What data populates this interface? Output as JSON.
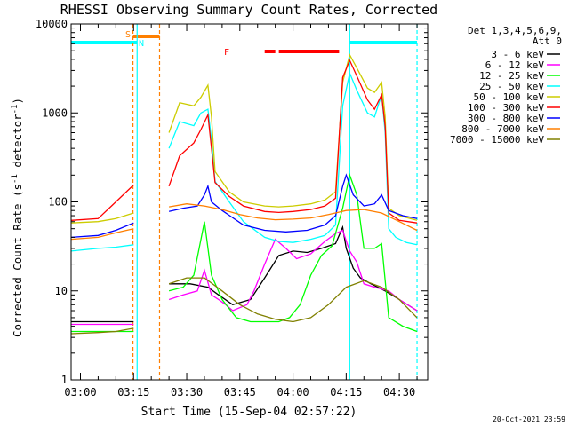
{
  "chart_data": {
    "type": "line",
    "title": "RHESSI Observing Summary Count Rates, Corrected",
    "xlabel": "Start Time (15-Sep-04 02:57:22)",
    "ylabel_main": "Corrected Count Rate (s",
    "ylabel_sup1": "-1",
    "ylabel_mid": " detector",
    "ylabel_sup2": "-1",
    "ylabel_end": ")",
    "y_scale": "log",
    "ylim": [
      1,
      10000
    ],
    "xlim": [
      "02:57:22",
      "04:38:00"
    ],
    "x_ticks": [
      "03:00",
      "03:15",
      "03:30",
      "03:45",
      "04:00",
      "04:15",
      "04:30"
    ],
    "y_ticks": [
      "1",
      "10",
      "100",
      "1000",
      "10000"
    ],
    "grid": false,
    "legend_placement": "right",
    "legend_header": [
      "Det 1,3,4,5,6,9,",
      "Att 0"
    ],
    "timestamp": "20-Oct-2021 23:59",
    "flag_labels": {
      "S": "S",
      "N": "N",
      "F": "F"
    },
    "flags": {
      "saa": {
        "start": "03:14:50",
        "end": "03:22:20",
        "color": "#ff7f00"
      },
      "night": [
        {
          "start": "02:57:22",
          "end": "03:16:00"
        },
        {
          "start": "04:16:00",
          "end": "04:35:00"
        }
      ],
      "flare": [
        {
          "start": "03:52:00",
          "end": "03:55:00"
        },
        {
          "start": "03:56:00",
          "end": "04:13:00"
        }
      ],
      "night_color": "#00ffff",
      "flare_color": "#ff0000"
    },
    "gaps": [
      "03:16:00",
      "03:24:30"
    ],
    "series": [
      {
        "name": "3 - 6 keV",
        "color": "#000000",
        "points": [
          [
            "02:57:22",
            4.5
          ],
          [
            "03:15:00",
            4.5
          ],
          [
            "03:25:00",
            12
          ],
          [
            "03:31:00",
            12
          ],
          [
            "03:36:00",
            11
          ],
          [
            "03:39:00",
            9
          ],
          [
            "03:43:00",
            7
          ],
          [
            "03:48:00",
            8
          ],
          [
            "03:52:00",
            14
          ],
          [
            "03:56:00",
            25
          ],
          [
            "04:00:00",
            28
          ],
          [
            "04:04:00",
            27
          ],
          [
            "04:08:00",
            30
          ],
          [
            "04:12:00",
            34
          ],
          [
            "04:14:00",
            52
          ],
          [
            "04:15:00",
            30
          ],
          [
            "04:17:00",
            18
          ],
          [
            "04:19:00",
            14
          ],
          [
            "04:22:00",
            12
          ],
          [
            "04:26:00",
            10
          ],
          [
            "04:30:00",
            8
          ],
          [
            "04:35:00",
            6
          ]
        ]
      },
      {
        "name": "6 - 12 keV",
        "color": "#ff00ff",
        "points": [
          [
            "02:57:22",
            4.2
          ],
          [
            "03:15:00",
            4.2
          ],
          [
            "03:25:00",
            8
          ],
          [
            "03:29:00",
            9
          ],
          [
            "03:33:00",
            10
          ],
          [
            "03:35:00",
            17
          ],
          [
            "03:37:00",
            9
          ],
          [
            "03:39:00",
            8
          ],
          [
            "03:41:00",
            7
          ],
          [
            "03:43:00",
            6
          ],
          [
            "03:47:00",
            7
          ],
          [
            "03:49:00",
            10
          ],
          [
            "03:52:00",
            20
          ],
          [
            "03:55:00",
            38
          ],
          [
            "03:58:00",
            30
          ],
          [
            "04:01:00",
            23
          ],
          [
            "04:05:00",
            26
          ],
          [
            "04:09:00",
            36
          ],
          [
            "04:12:00",
            44
          ],
          [
            "04:14:00",
            48
          ],
          [
            "04:16:00",
            28
          ],
          [
            "04:18:00",
            21
          ],
          [
            "04:20:00",
            12
          ],
          [
            "04:23:00",
            11
          ],
          [
            "04:27:00",
            10
          ],
          [
            "04:30:00",
            8
          ],
          [
            "04:35:00",
            6
          ]
        ]
      },
      {
        "name": "12 - 25 keV",
        "color": "#00ff00",
        "points": [
          [
            "02:57:22",
            3.5
          ],
          [
            "03:15:00",
            3.5
          ],
          [
            "03:25:00",
            10
          ],
          [
            "03:29:00",
            11
          ],
          [
            "03:32:00",
            15
          ],
          [
            "03:35:00",
            60
          ],
          [
            "03:37:00",
            15
          ],
          [
            "03:40:00",
            8
          ],
          [
            "03:44:00",
            5
          ],
          [
            "03:48:00",
            4.5
          ],
          [
            "03:52:00",
            4.5
          ],
          [
            "03:56:00",
            4.5
          ],
          [
            "03:59:00",
            5
          ],
          [
            "04:02:00",
            7
          ],
          [
            "04:05:00",
            15
          ],
          [
            "04:08:00",
            25
          ],
          [
            "04:11:00",
            32
          ],
          [
            "04:14:00",
            85
          ],
          [
            "04:16:00",
            200
          ],
          [
            "04:18:00",
            120
          ],
          [
            "04:20:00",
            30
          ],
          [
            "04:23:00",
            30
          ],
          [
            "04:25:00",
            34
          ],
          [
            "04:27:00",
            5
          ],
          [
            "04:31:00",
            4
          ],
          [
            "04:35:00",
            3.5
          ]
        ]
      },
      {
        "name": "25 - 50 keV",
        "color": "#00ffff",
        "points": [
          [
            "02:57:22",
            28
          ],
          [
            "03:05:00",
            30
          ],
          [
            "03:10:00",
            31
          ],
          [
            "03:15:00",
            33
          ],
          [
            "03:25:00",
            400
          ],
          [
            "03:28:00",
            800
          ],
          [
            "03:32:00",
            720
          ],
          [
            "03:34:00",
            1000
          ],
          [
            "03:36:00",
            1100
          ],
          [
            "03:37:00",
            500
          ],
          [
            "03:38:00",
            170
          ],
          [
            "03:42:00",
            100
          ],
          [
            "03:46:00",
            60
          ],
          [
            "03:52:00",
            40
          ],
          [
            "03:56:00",
            36
          ],
          [
            "04:00:00",
            35
          ],
          [
            "04:05:00",
            38
          ],
          [
            "04:09:00",
            42
          ],
          [
            "04:12:00",
            55
          ],
          [
            "04:14:00",
            1200
          ],
          [
            "04:16:00",
            2800
          ],
          [
            "04:18:00",
            1800
          ],
          [
            "04:21:00",
            1000
          ],
          [
            "04:23:00",
            900
          ],
          [
            "04:25:00",
            1600
          ],
          [
            "04:26:00",
            600
          ],
          [
            "04:27:00",
            50
          ],
          [
            "04:29:00",
            40
          ],
          [
            "04:32:00",
            35
          ],
          [
            "04:35:00",
            33
          ]
        ]
      },
      {
        "name": "50 - 100 keV",
        "color": "#cccc00",
        "points": [
          [
            "02:57:22",
            58
          ],
          [
            "03:05:00",
            60
          ],
          [
            "03:10:00",
            65
          ],
          [
            "03:15:00",
            75
          ],
          [
            "03:25:00",
            600
          ],
          [
            "03:28:00",
            1300
          ],
          [
            "03:32:00",
            1200
          ],
          [
            "03:34:00",
            1500
          ],
          [
            "03:36:00",
            2050
          ],
          [
            "03:37:00",
            900
          ],
          [
            "03:38:00",
            220
          ],
          [
            "03:42:00",
            130
          ],
          [
            "03:46:00",
            100
          ],
          [
            "03:52:00",
            90
          ],
          [
            "03:56:00",
            88
          ],
          [
            "04:00:00",
            90
          ],
          [
            "04:05:00",
            95
          ],
          [
            "04:09:00",
            105
          ],
          [
            "04:12:00",
            130
          ],
          [
            "04:14:00",
            2200
          ],
          [
            "04:16:00",
            4500
          ],
          [
            "04:18:00",
            3200
          ],
          [
            "04:21:00",
            1900
          ],
          [
            "04:23:00",
            1700
          ],
          [
            "04:25:00",
            2200
          ],
          [
            "04:26:00",
            900
          ],
          [
            "04:27:00",
            85
          ],
          [
            "04:30:00",
            70
          ],
          [
            "04:35:00",
            62
          ]
        ]
      },
      {
        "name": "100 - 300 keV",
        "color": "#ff0000",
        "points": [
          [
            "02:57:22",
            62
          ],
          [
            "03:05:00",
            65
          ],
          [
            "03:10:00",
            100
          ],
          [
            "03:15:00",
            155
          ],
          [
            "03:25:00",
            150
          ],
          [
            "03:28:00",
            330
          ],
          [
            "03:32:00",
            460
          ],
          [
            "03:34:00",
            650
          ],
          [
            "03:36:00",
            950
          ],
          [
            "03:37:00",
            400
          ],
          [
            "03:38:00",
            165
          ],
          [
            "03:42:00",
            115
          ],
          [
            "03:46:00",
            90
          ],
          [
            "03:52:00",
            78
          ],
          [
            "03:56:00",
            76
          ],
          [
            "04:00:00",
            78
          ],
          [
            "04:05:00",
            82
          ],
          [
            "04:09:00",
            90
          ],
          [
            "04:12:00",
            110
          ],
          [
            "04:14:00",
            2500
          ],
          [
            "04:16:00",
            3900
          ],
          [
            "04:18:00",
            2600
          ],
          [
            "04:21:00",
            1400
          ],
          [
            "04:23:00",
            1100
          ],
          [
            "04:25:00",
            1600
          ],
          [
            "04:26:00",
            700
          ],
          [
            "04:27:00",
            75
          ],
          [
            "04:30:00",
            62
          ],
          [
            "04:35:00",
            58
          ]
        ]
      },
      {
        "name": "300 - 800 keV",
        "color": "#0000ff",
        "points": [
          [
            "02:57:22",
            40
          ],
          [
            "03:05:00",
            42
          ],
          [
            "03:10:00",
            48
          ],
          [
            "03:15:00",
            58
          ],
          [
            "03:25:00",
            78
          ],
          [
            "03:29:00",
            85
          ],
          [
            "03:33:00",
            90
          ],
          [
            "03:35:00",
            120
          ],
          [
            "03:36:00",
            150
          ],
          [
            "03:37:00",
            100
          ],
          [
            "03:40:00",
            80
          ],
          [
            "03:46:00",
            55
          ],
          [
            "03:52:00",
            48
          ],
          [
            "03:58:00",
            46
          ],
          [
            "04:04:00",
            48
          ],
          [
            "04:09:00",
            55
          ],
          [
            "04:12:00",
            70
          ],
          [
            "04:14:00",
            150
          ],
          [
            "04:15:00",
            200
          ],
          [
            "04:17:00",
            120
          ],
          [
            "04:20:00",
            90
          ],
          [
            "04:23:00",
            95
          ],
          [
            "04:25:00",
            120
          ],
          [
            "04:27:00",
            80
          ],
          [
            "04:31:00",
            70
          ],
          [
            "04:35:00",
            65
          ]
        ]
      },
      {
        "name": "800 - 7000 keV",
        "color": "#ff7f00",
        "points": [
          [
            "02:57:22",
            38
          ],
          [
            "03:05:00",
            40
          ],
          [
            "03:10:00",
            45
          ],
          [
            "03:15:00",
            50
          ],
          [
            "03:25:00",
            88
          ],
          [
            "03:30:00",
            95
          ],
          [
            "03:35:00",
            90
          ],
          [
            "03:40:00",
            82
          ],
          [
            "03:45:00",
            72
          ],
          [
            "03:50:00",
            66
          ],
          [
            "03:55:00",
            63
          ],
          [
            "04:00:00",
            64
          ],
          [
            "04:05:00",
            66
          ],
          [
            "04:10:00",
            72
          ],
          [
            "04:15:00",
            80
          ],
          [
            "04:20:00",
            82
          ],
          [
            "04:25:00",
            75
          ],
          [
            "04:30:00",
            60
          ],
          [
            "04:35:00",
            48
          ]
        ]
      },
      {
        "name": "7000 - 15000 keV",
        "color": "#808000",
        "points": [
          [
            "02:57:22",
            3.3
          ],
          [
            "03:05:00",
            3.4
          ],
          [
            "03:10:00",
            3.5
          ],
          [
            "03:15:00",
            3.8
          ],
          [
            "03:25:00",
            12
          ],
          [
            "03:30:00",
            14
          ],
          [
            "03:35:00",
            14
          ],
          [
            "03:40:00",
            10
          ],
          [
            "03:45:00",
            7
          ],
          [
            "03:50:00",
            5.5
          ],
          [
            "03:55:00",
            4.8
          ],
          [
            "04:00:00",
            4.5
          ],
          [
            "04:05:00",
            5
          ],
          [
            "04:10:00",
            7
          ],
          [
            "04:15:00",
            11
          ],
          [
            "04:20:00",
            13
          ],
          [
            "04:25:00",
            11
          ],
          [
            "04:30:00",
            8
          ],
          [
            "04:35:00",
            5
          ]
        ]
      }
    ]
  }
}
